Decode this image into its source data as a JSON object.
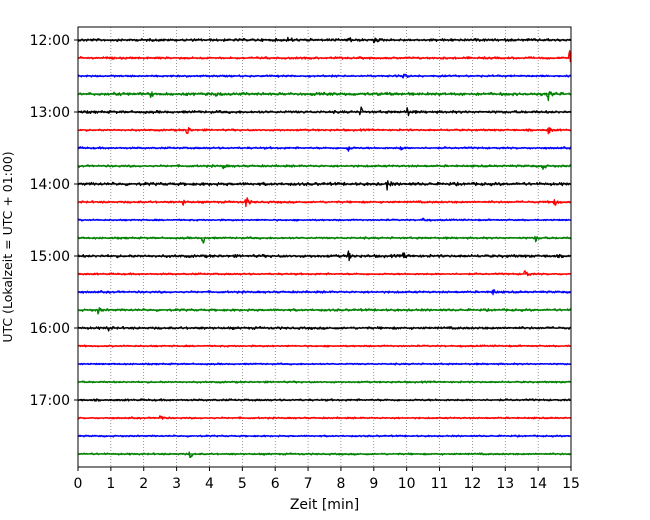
{
  "chart_data": {
    "type": "line",
    "title": "",
    "xlabel": "Zeit  [min]",
    "ylabel": "UTC (Lokalzeit = UTC + 01:00)",
    "xlim": [
      0,
      15
    ],
    "xticks": [
      0,
      1,
      2,
      3,
      4,
      5,
      6,
      7,
      8,
      9,
      10,
      11,
      12,
      13,
      14,
      15
    ],
    "xtick_labels": [
      "0",
      "1",
      "2",
      "3",
      "4",
      "5",
      "6",
      "7",
      "8",
      "9",
      "10",
      "11",
      "12",
      "13",
      "14",
      "15"
    ],
    "y_tick_labels": [
      "12:00",
      "13:00",
      "14:00",
      "15:00",
      "16:00",
      "17:00"
    ],
    "y_tick_rows": [
      0,
      4,
      8,
      12,
      16,
      20
    ],
    "row_interval_min": 15,
    "grid": "vertical dotted",
    "colors": [
      "#000000",
      "#ff0000",
      "#0000ff",
      "#008000"
    ],
    "rows": [
      {
        "start": "12:00",
        "color": "#000000",
        "amp": 1.6,
        "events": [
          {
            "t": 6.4,
            "a": 4
          },
          {
            "t": 8.2,
            "a": 6
          },
          {
            "t": 9.0,
            "a": 3
          }
        ]
      },
      {
        "start": "12:15",
        "color": "#ff0000",
        "amp": 1.3,
        "events": [
          {
            "t": 14.95,
            "a": 9
          }
        ]
      },
      {
        "start": "12:30",
        "color": "#0000ff",
        "amp": 1.2,
        "events": [
          {
            "t": 9.9,
            "a": 4
          }
        ]
      },
      {
        "start": "12:45",
        "color": "#008000",
        "amp": 1.8,
        "events": [
          {
            "t": 2.2,
            "a": 3
          },
          {
            "t": 4.2,
            "a": 3
          },
          {
            "t": 14.3,
            "a": 8
          }
        ]
      },
      {
        "start": "13:00",
        "color": "#000000",
        "amp": 1.6,
        "events": [
          {
            "t": 8.6,
            "a": 5
          },
          {
            "t": 10.0,
            "a": 6
          }
        ]
      },
      {
        "start": "13:15",
        "color": "#ff0000",
        "amp": 1.2,
        "events": [
          {
            "t": 3.3,
            "a": 8
          },
          {
            "t": 14.3,
            "a": 5
          }
        ]
      },
      {
        "start": "13:30",
        "color": "#0000ff",
        "amp": 1.2,
        "events": [
          {
            "t": 8.2,
            "a": 5
          },
          {
            "t": 9.8,
            "a": 3
          }
        ]
      },
      {
        "start": "13:45",
        "color": "#008000",
        "amp": 1.3,
        "events": [
          {
            "t": 4.4,
            "a": 3
          },
          {
            "t": 14.1,
            "a": 7
          }
        ]
      },
      {
        "start": "14:00",
        "color": "#000000",
        "amp": 1.8,
        "events": [
          {
            "t": 9.4,
            "a": 6
          }
        ]
      },
      {
        "start": "14:15",
        "color": "#ff0000",
        "amp": 1.3,
        "events": [
          {
            "t": 3.2,
            "a": 3
          },
          {
            "t": 5.1,
            "a": 8
          },
          {
            "t": 14.5,
            "a": 5
          }
        ]
      },
      {
        "start": "14:30",
        "color": "#0000ff",
        "amp": 1.0,
        "events": [
          {
            "t": 10.5,
            "a": 3
          }
        ]
      },
      {
        "start": "14:45",
        "color": "#008000",
        "amp": 1.2,
        "events": [
          {
            "t": 3.8,
            "a": 6
          },
          {
            "t": 13.9,
            "a": 5
          }
        ]
      },
      {
        "start": "15:00",
        "color": "#000000",
        "amp": 1.7,
        "events": [
          {
            "t": 8.2,
            "a": 8
          },
          {
            "t": 9.9,
            "a": 4
          }
        ]
      },
      {
        "start": "15:15",
        "color": "#ff0000",
        "amp": 1.1,
        "events": [
          {
            "t": 13.6,
            "a": 7
          }
        ]
      },
      {
        "start": "15:30",
        "color": "#0000ff",
        "amp": 1.3,
        "events": [
          {
            "t": 12.6,
            "a": 5
          }
        ]
      },
      {
        "start": "15:45",
        "color": "#008000",
        "amp": 1.4,
        "events": [
          {
            "t": 0.6,
            "a": 4
          }
        ]
      },
      {
        "start": "16:00",
        "color": "#000000",
        "amp": 1.5,
        "events": [
          {
            "t": 0.9,
            "a": 3
          }
        ]
      },
      {
        "start": "16:15",
        "color": "#ff0000",
        "amp": 1.0,
        "events": []
      },
      {
        "start": "16:30",
        "color": "#0000ff",
        "amp": 1.0,
        "events": []
      },
      {
        "start": "16:45",
        "color": "#008000",
        "amp": 1.1,
        "events": []
      },
      {
        "start": "17:00",
        "color": "#000000",
        "amp": 1.2,
        "events": []
      },
      {
        "start": "17:15",
        "color": "#ff0000",
        "amp": 1.0,
        "events": [
          {
            "t": 2.5,
            "a": 5
          }
        ]
      },
      {
        "start": "17:30",
        "color": "#0000ff",
        "amp": 1.0,
        "events": []
      },
      {
        "start": "17:45",
        "color": "#008000",
        "amp": 1.1,
        "events": [
          {
            "t": 3.4,
            "a": 5
          }
        ]
      }
    ]
  }
}
